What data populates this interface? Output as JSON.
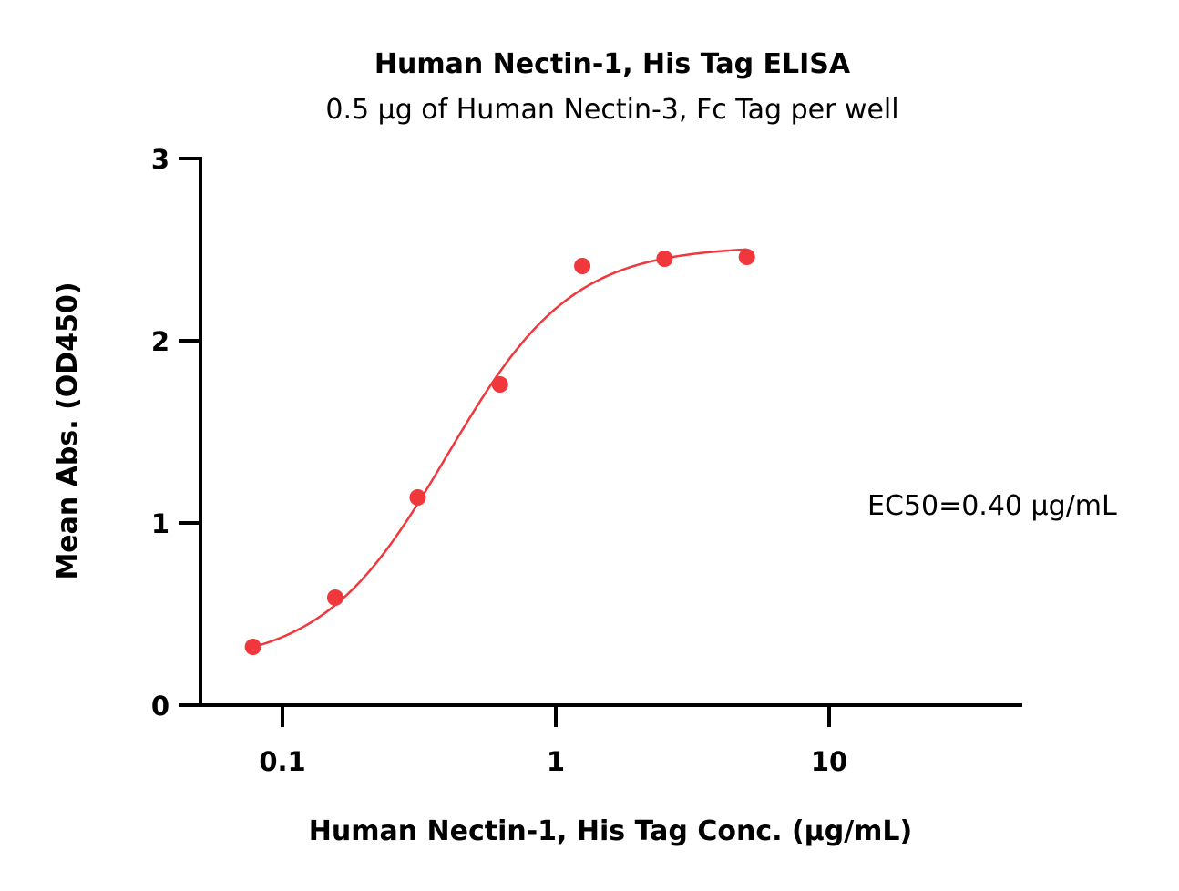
{
  "chart_data": {
    "type": "scatter",
    "title": "Human Nectin-1, His Tag ELISA",
    "subtitle": "0.5 µg of Human Nectin-3, Fc Tag per well",
    "xlabel": "Human Nectin-1, His Tag Conc. (µg/mL)",
    "ylabel": "Mean Abs. (OD450)",
    "x_scale": "log",
    "xlim": [
      0.05,
      50
    ],
    "ylim": [
      0,
      3
    ],
    "x_ticks": [
      0.1,
      1,
      10
    ],
    "x_tick_labels": [
      "0.1",
      "1",
      "10"
    ],
    "y_ticks": [
      0,
      1,
      2,
      3
    ],
    "y_tick_labels": [
      "0",
      "1",
      "2",
      "3"
    ],
    "grid": false,
    "series": [
      {
        "x": [
          0.078,
          0.156,
          0.3125,
          0.625,
          1.25,
          2.5,
          5
        ],
        "y": [
          0.32,
          0.59,
          1.14,
          1.76,
          2.41,
          2.45,
          2.46
        ],
        "color": "#f0383c",
        "marker": "circle",
        "fit": "4PL",
        "fit_params": {
          "bottom": 0.22,
          "top": 2.52,
          "ec50": 0.4,
          "hill": 1.9
        }
      }
    ],
    "annotation": "EC50=0.40 µg/mL"
  }
}
